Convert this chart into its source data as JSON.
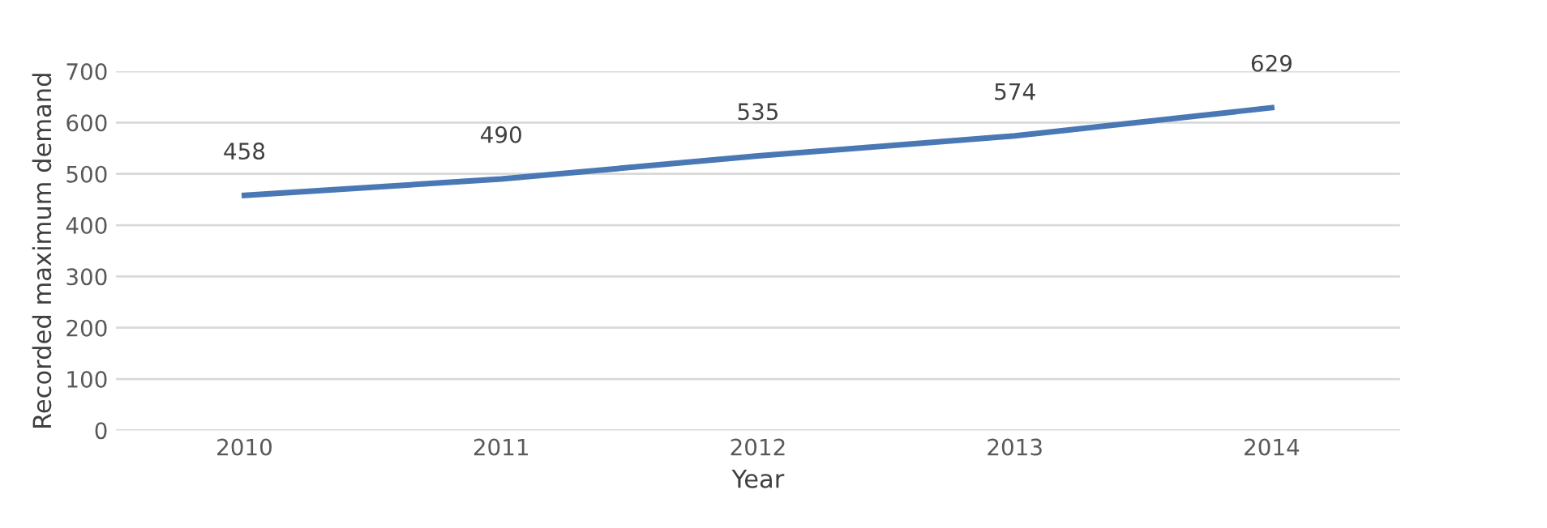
{
  "chart_data": {
    "type": "line",
    "xlabel": "Year",
    "ylabel": "Recorded maximum demand",
    "categories": [
      "2010",
      "2011",
      "2012",
      "2013",
      "2014"
    ],
    "series": [
      {
        "color": "#4a78b5",
        "values": [
          458,
          490,
          535,
          574,
          629
        ]
      }
    ],
    "ylim": [
      0,
      700
    ],
    "yticks": [
      0,
      100,
      200,
      300,
      400,
      500,
      600,
      700
    ],
    "grid": "y",
    "data_labels": true,
    "marker": "none",
    "line_style": "solid"
  }
}
